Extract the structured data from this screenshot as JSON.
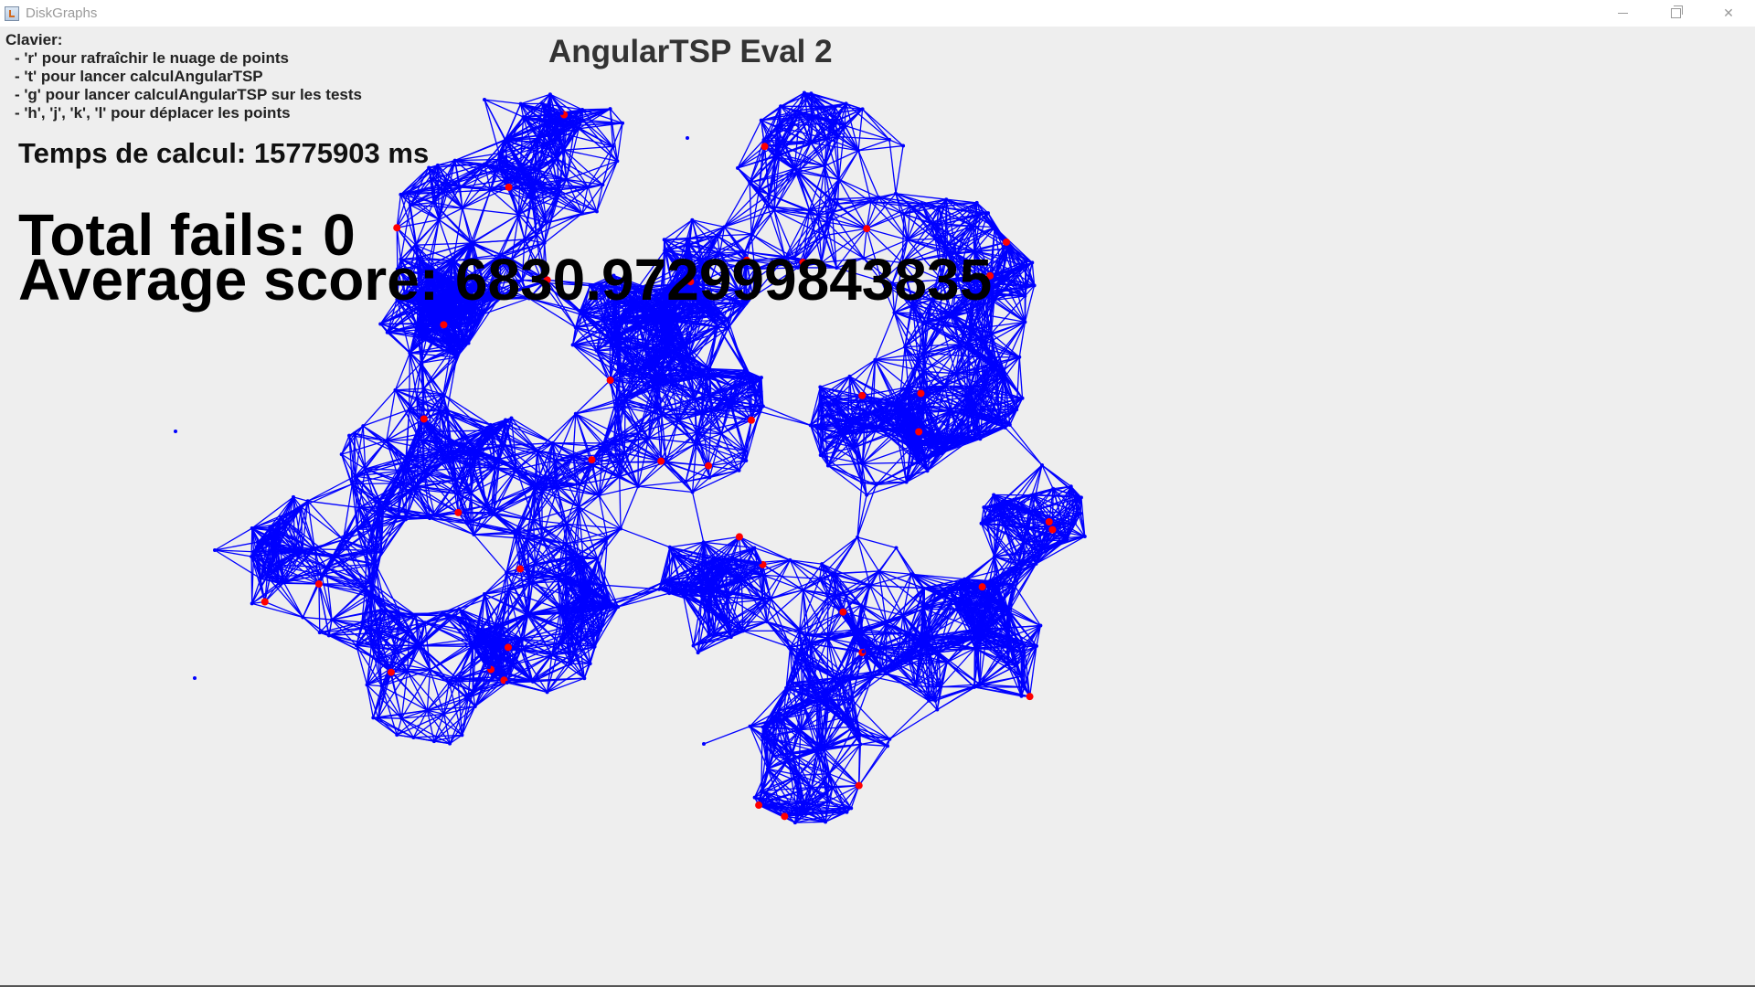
{
  "window": {
    "title": "DiskGraphs",
    "controls": {
      "minimize": "minimize-icon",
      "restore": "restore-icon",
      "close": "close-icon"
    }
  },
  "help": {
    "heading": "Clavier:",
    "items": [
      " - 'r' pour rafraîchir le nuage de points",
      " - 't' pour lancer calculAngularTSP",
      " - 'g' pour lancer calculAngularTSP sur les tests",
      " - 'h', 'j', 'k', 'l' pour déplacer les points"
    ]
  },
  "canvas": {
    "title": "AngularTSP Eval 2",
    "calc_time": "Temps de calcul: 15775903 ms",
    "total_fails": "Total fails: 0",
    "average_score": "Average score: 6830.972999843835"
  },
  "colors": {
    "background": "#eeeeee",
    "edges": "#0000ff",
    "nodes": "#0000ff",
    "highlighted_nodes": "#ff0000"
  }
}
